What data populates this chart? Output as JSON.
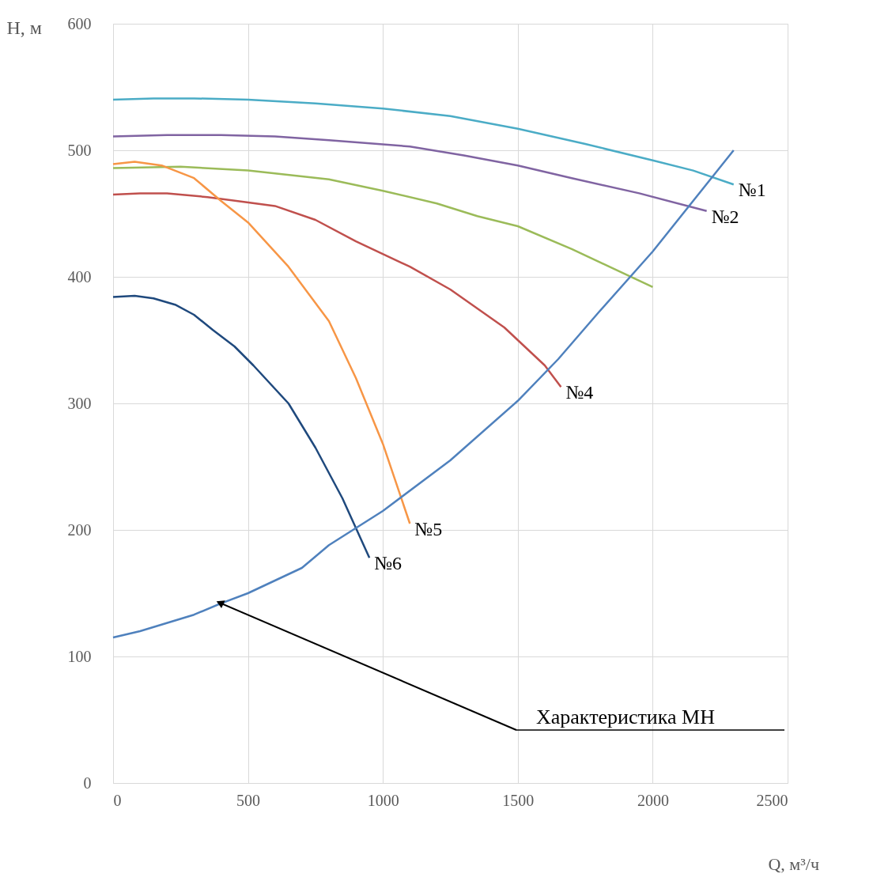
{
  "chart_data": {
    "type": "line",
    "xlabel": "Q, м³/ч",
    "ylabel": "H, м",
    "xlim": [
      0,
      2500
    ],
    "ylim": [
      0,
      600
    ],
    "xticks": [
      0,
      500,
      1000,
      1500,
      2000,
      2500
    ],
    "yticks": [
      0,
      100,
      200,
      300,
      400,
      500,
      600
    ],
    "grid": true,
    "marker": "none",
    "line_style": "solid",
    "series": [
      {
        "name": "№1",
        "color": "#4bacc6",
        "x": [
          0,
          150,
          300,
          500,
          750,
          1000,
          1250,
          1500,
          1750,
          2000,
          2150,
          2300
        ],
        "values": [
          540,
          541,
          541,
          540,
          537,
          533,
          527,
          517,
          505,
          492,
          484,
          473
        ]
      },
      {
        "name": "№2",
        "color": "#8064a2",
        "x": [
          0,
          200,
          400,
          600,
          800,
          1100,
          1300,
          1500,
          1700,
          1950,
          2200
        ],
        "values": [
          511,
          512,
          512,
          511,
          508,
          503,
          496,
          488,
          478,
          466,
          452
        ]
      },
      {
        "color": "#9bbb59",
        "x": [
          0,
          250,
          500,
          800,
          1000,
          1200,
          1350,
          1500,
          1700,
          1850,
          2000
        ],
        "values": [
          486,
          487,
          484,
          477,
          468,
          458,
          448,
          440,
          422,
          407,
          392
        ]
      },
      {
        "name": "№4",
        "color": "#c0504d",
        "x": [
          0,
          100,
          200,
          350,
          600,
          750,
          900,
          1100,
          1250,
          1450,
          1600,
          1660
        ],
        "values": [
          465,
          466,
          466,
          463,
          456,
          445,
          428,
          408,
          390,
          360,
          330,
          313
        ]
      },
      {
        "name": "№5",
        "color": "#f79646",
        "x": [
          0,
          80,
          180,
          300,
          400,
          500,
          650,
          800,
          900,
          1000,
          1100
        ],
        "values": [
          489,
          491,
          488,
          478,
          460,
          443,
          408,
          365,
          320,
          268,
          205
        ]
      },
      {
        "name": "№6",
        "color": "#1f497d",
        "x": [
          0,
          80,
          150,
          230,
          300,
          370,
          450,
          520,
          650,
          750,
          850,
          950
        ],
        "values": [
          384,
          385,
          383,
          378,
          370,
          358,
          345,
          330,
          300,
          265,
          225,
          178
        ]
      },
      {
        "color": "#4f81bd",
        "x": [
          0,
          100,
          300,
          400,
          500,
          700,
          800,
          1000,
          1250,
          1500,
          1650,
          1800,
          2000,
          2150,
          2300
        ],
        "values": [
          115,
          120,
          133,
          142,
          150,
          170,
          188,
          215,
          255,
          302,
          335,
          372,
          420,
          460,
          500
        ]
      }
    ],
    "annotations": [
      {
        "text": "Характеристика МН",
        "x": 400,
        "y": 142
      }
    ]
  }
}
